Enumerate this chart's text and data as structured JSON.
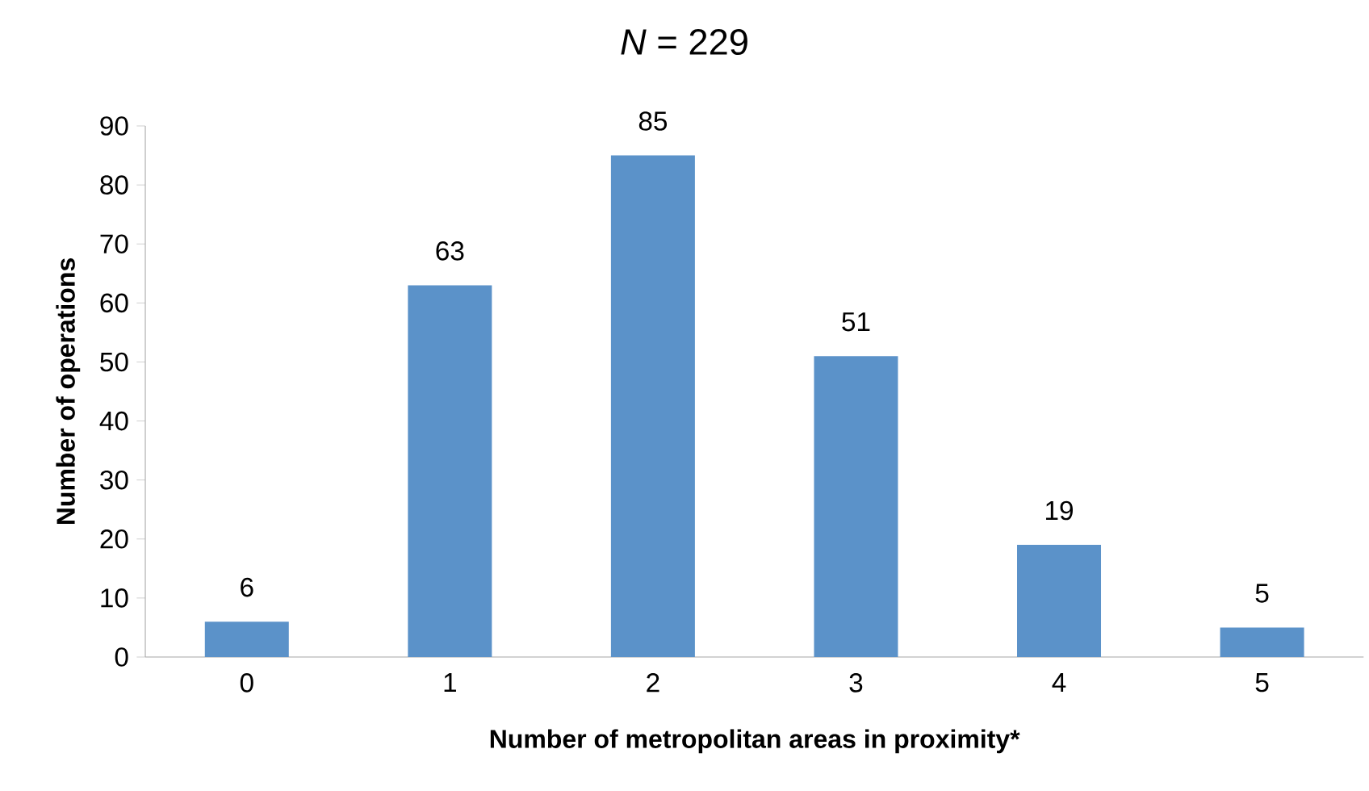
{
  "chart_data": {
    "type": "bar",
    "title": "*N* = 229",
    "xlabel": "Number of metropolitan areas in proximity*",
    "ylabel": "Number of operations",
    "categories": [
      "0",
      "1",
      "2",
      "3",
      "4",
      "5"
    ],
    "values": [
      6,
      63,
      85,
      51,
      19,
      5
    ],
    "color": "#5b92c9",
    "ylim": [
      0,
      90
    ],
    "yticks": [
      0,
      10,
      20,
      30,
      40,
      50,
      60,
      70,
      80,
      90
    ],
    "grid": false,
    "data_labels": true
  }
}
